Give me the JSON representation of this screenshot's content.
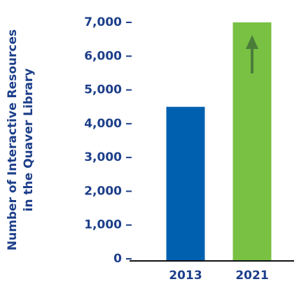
{
  "chart_data": {
    "type": "bar",
    "categories": [
      "2013",
      "2021"
    ],
    "values": [
      4500,
      7000
    ],
    "bar_colors": [
      "#0060b0",
      "#78c143"
    ],
    "ylabel_lines": [
      "Number of Interactive Resources",
      "in the Quaver Library"
    ],
    "ylim": [
      0,
      7000
    ],
    "yticks": [
      0,
      1000,
      2000,
      3000,
      4000,
      5000,
      6000,
      7000
    ],
    "ytick_labels": [
      "0",
      "1,000",
      "2,000",
      "3,000",
      "4,000",
      "5,000",
      "6,000",
      "7,000"
    ],
    "grid": false,
    "legend": "none",
    "annotations": [
      {
        "type": "up-arrow",
        "category": "2021",
        "color": "#4b7d3a"
      }
    ],
    "text_color": "#1d3f8a",
    "axis_color": "#111111"
  }
}
